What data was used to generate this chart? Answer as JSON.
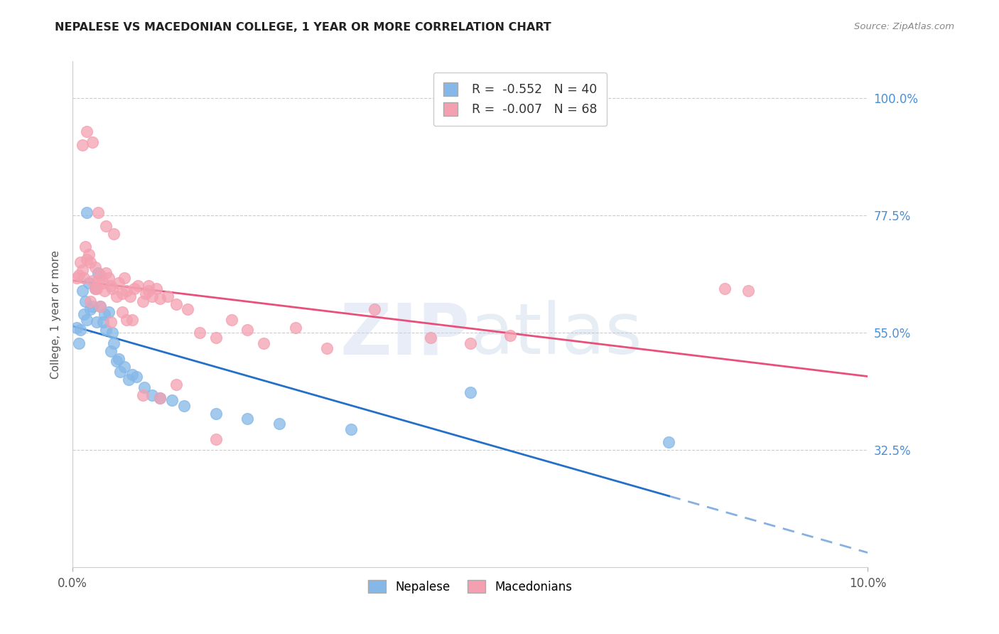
{
  "title": "NEPALESE VS MACEDONIAN COLLEGE, 1 YEAR OR MORE CORRELATION CHART",
  "source": "Source: ZipAtlas.com",
  "ylabel": "College, 1 year or more",
  "xlim": [
    0.0,
    10.0
  ],
  "ylim": [
    10.0,
    107.0
  ],
  "yticks": [
    32.5,
    55.0,
    77.5,
    100.0
  ],
  "xtick_positions": [
    0.0,
    10.0
  ],
  "xtick_labels": [
    "0.0%",
    "10.0%"
  ],
  "ytick_labels": [
    "32.5%",
    "55.0%",
    "77.5%",
    "100.0%"
  ],
  "nepalese_R": -0.552,
  "nepalese_N": 40,
  "macedonian_R": -0.007,
  "macedonian_N": 68,
  "nepalese_color": "#85b8e8",
  "macedonian_color": "#f4a0b0",
  "nepalese_line_color": "#2470c8",
  "macedonian_line_color": "#e8507a",
  "watermark_zip": "ZIP",
  "watermark_atlas": "atlas",
  "nepalese_x": [
    0.05,
    0.08,
    0.1,
    0.12,
    0.14,
    0.16,
    0.18,
    0.2,
    0.22,
    0.25,
    0.28,
    0.3,
    0.32,
    0.35,
    0.38,
    0.4,
    0.42,
    0.45,
    0.48,
    0.5,
    0.52,
    0.55,
    0.58,
    0.6,
    0.65,
    0.7,
    0.75,
    0.8,
    0.9,
    1.0,
    1.1,
    1.25,
    1.4,
    1.8,
    2.2,
    2.6,
    3.5,
    5.0,
    7.5,
    0.18
  ],
  "nepalese_y": [
    56.0,
    53.0,
    55.5,
    63.0,
    58.5,
    61.0,
    57.5,
    64.5,
    59.5,
    60.0,
    63.5,
    57.0,
    66.5,
    60.0,
    57.0,
    58.5,
    55.5,
    59.0,
    51.5,
    55.0,
    53.0,
    49.5,
    50.0,
    47.5,
    48.5,
    46.0,
    47.0,
    46.5,
    44.5,
    43.0,
    42.5,
    42.0,
    41.0,
    39.5,
    38.5,
    37.5,
    36.5,
    43.5,
    34.0,
    78.0
  ],
  "macedonian_x": [
    0.05,
    0.08,
    0.1,
    0.12,
    0.14,
    0.16,
    0.18,
    0.2,
    0.22,
    0.25,
    0.28,
    0.3,
    0.32,
    0.35,
    0.38,
    0.4,
    0.42,
    0.45,
    0.48,
    0.5,
    0.55,
    0.58,
    0.62,
    0.65,
    0.68,
    0.72,
    0.78,
    0.82,
    0.88,
    0.92,
    0.95,
    1.0,
    1.05,
    1.1,
    1.2,
    1.3,
    1.45,
    1.6,
    1.8,
    2.0,
    2.2,
    2.4,
    2.8,
    3.2,
    3.8,
    4.5,
    5.0,
    5.5,
    8.2,
    8.5,
    0.12,
    0.18,
    0.25,
    0.32,
    0.42,
    0.52,
    0.68,
    0.88,
    1.1,
    1.8,
    0.22,
    0.35,
    0.48,
    0.62,
    0.75,
    0.95,
    1.3,
    0.28
  ],
  "macedonian_y": [
    65.5,
    66.0,
    68.5,
    67.0,
    65.5,
    71.5,
    69.0,
    70.0,
    68.5,
    65.0,
    67.5,
    63.5,
    65.0,
    66.0,
    64.5,
    63.0,
    66.5,
    65.5,
    64.0,
    63.5,
    62.0,
    64.5,
    62.5,
    65.5,
    63.0,
    62.0,
    63.5,
    64.0,
    61.0,
    62.5,
    63.0,
    62.0,
    63.5,
    61.5,
    62.0,
    60.5,
    59.5,
    55.0,
    54.0,
    57.5,
    55.5,
    53.0,
    56.0,
    52.0,
    59.5,
    54.0,
    53.0,
    54.5,
    63.5,
    63.0,
    91.0,
    93.5,
    91.5,
    78.0,
    75.5,
    74.0,
    57.5,
    43.0,
    42.5,
    34.5,
    61.0,
    60.0,
    57.0,
    59.0,
    57.5,
    64.0,
    45.0,
    63.5
  ]
}
